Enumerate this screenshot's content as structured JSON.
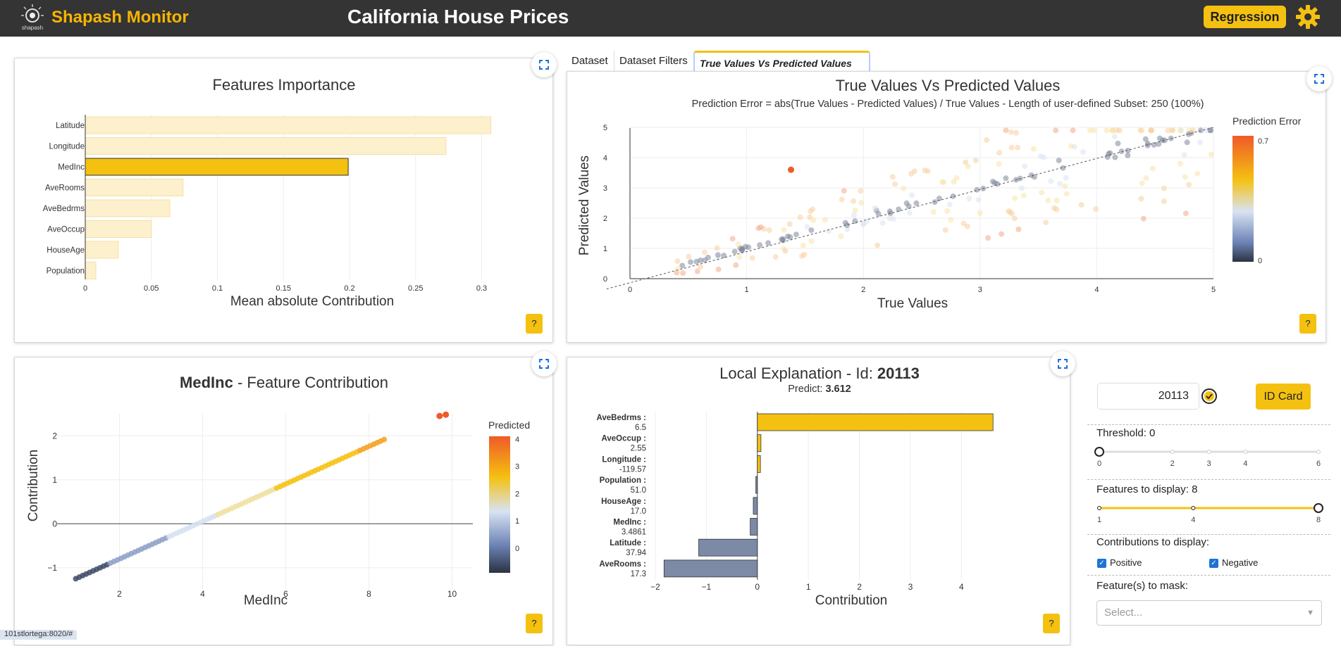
{
  "header": {
    "app_name": "Shapash Monitor",
    "logo_caption": "shapash",
    "title": "California House Prices",
    "mode": "Regression",
    "accent": "#f4c111"
  },
  "features_importance": {
    "title": "Features Importance",
    "help": "?",
    "chart_data": {
      "type": "bar",
      "orientation": "horizontal",
      "title": "Features Importance",
      "xlabel": "Mean absolute Contribution",
      "categories": [
        "Latitude",
        "Longitude",
        "MedInc",
        "AveRooms",
        "AveBedrms",
        "AveOccup",
        "HouseAge",
        "Population"
      ],
      "values": [
        0.307,
        0.273,
        0.199,
        0.074,
        0.064,
        0.05,
        0.025,
        0.008
      ],
      "highlighted": "MedInc",
      "xticks": [
        "0",
        "0.05",
        "0.1",
        "0.15",
        "0.2",
        "0.25",
        "0.3"
      ],
      "xlim": [
        0,
        0.32
      ]
    }
  },
  "tabs": [
    {
      "label": "Dataset",
      "active": false
    },
    {
      "label": "Dataset Filters",
      "active": false
    },
    {
      "label": "True Values Vs Predicted Values",
      "active": true
    }
  ],
  "true_vs_pred": {
    "help": "?",
    "chart_data": {
      "type": "scatter",
      "title": "True Values Vs Predicted Values",
      "subtitle": "Prediction Error = abs(True Values - Predicted Values) / True Values - Length of user-defined Subset: 250 (100%)",
      "xlabel": "True Values",
      "ylabel": "Predicted Values",
      "xticks": [
        "0",
        "1",
        "2",
        "3",
        "4",
        "5"
      ],
      "yticks": [
        "0",
        "1",
        "2",
        "3",
        "4",
        "5"
      ],
      "xlim": [
        0,
        5
      ],
      "ylim": [
        0,
        5
      ],
      "colorbar_title": "Prediction Error",
      "colorbar_max": "0.7",
      "colorbar_min": "0"
    }
  },
  "feature_contribution": {
    "feature": "MedInc",
    "title_suffix": " - Feature Contribution",
    "help": "?",
    "chart_data": {
      "type": "scatter",
      "xlabel": "MedInc",
      "ylabel": "Contribution",
      "xticks": [
        "2",
        "4",
        "6",
        "8",
        "10"
      ],
      "yticks": [
        "2",
        "1",
        "0",
        "−1"
      ],
      "xlim": [
        0.5,
        10.5
      ],
      "ylim": [
        -1.5,
        2.5
      ],
      "colorbar_title": "Predicted",
      "colorbar_ticks": [
        "4",
        "3",
        "2",
        "1",
        "0"
      ]
    }
  },
  "local_explanation": {
    "title_prefix": "Local Explanation - Id: ",
    "id": "20113",
    "predict_label": "Predict: ",
    "predict_value": "3.612",
    "help": "?",
    "chart_data": {
      "type": "bar",
      "orientation": "horizontal",
      "xlabel": "Contribution",
      "categories": [
        {
          "name": "AveBedrms :",
          "value": "6.5"
        },
        {
          "name": "AveOccup :",
          "value": "2.55"
        },
        {
          "name": "Longitude :",
          "value": "-119.57"
        },
        {
          "name": "Population :",
          "value": "51.0"
        },
        {
          "name": "HouseAge :",
          "value": "17.0"
        },
        {
          "name": "MedInc :",
          "value": "3.4861"
        },
        {
          "name": "Latitude :",
          "value": "37.94"
        },
        {
          "name": "AveRooms :",
          "value": "17.3"
        }
      ],
      "values": [
        4.62,
        0.07,
        0.06,
        -0.03,
        -0.08,
        -0.14,
        -1.15,
        -1.83
      ],
      "xticks": [
        "−2",
        "−1",
        "0",
        "1",
        "2",
        "3",
        "4"
      ],
      "xlim": [
        -2,
        4.7
      ],
      "positive_color": "#f4c111",
      "negative_color": "#7c8aa6"
    }
  },
  "controls": {
    "id_value": "20113",
    "id_card_label": "ID Card",
    "threshold_label": "Threshold: 0",
    "threshold_ticks": [
      "0",
      "2",
      "3",
      "4",
      "6"
    ],
    "threshold_value": 0,
    "features_label": "Features to display: 8",
    "features_ticks": [
      "1",
      "4",
      "8"
    ],
    "features_value": 8,
    "contrib_label": "Contributions to display:",
    "positive_label": "Positive",
    "negative_label": "Negative",
    "mask_label": "Feature(s) to mask:",
    "mask_placeholder": "Select..."
  },
  "status_url": "101stlortega:8020/#"
}
